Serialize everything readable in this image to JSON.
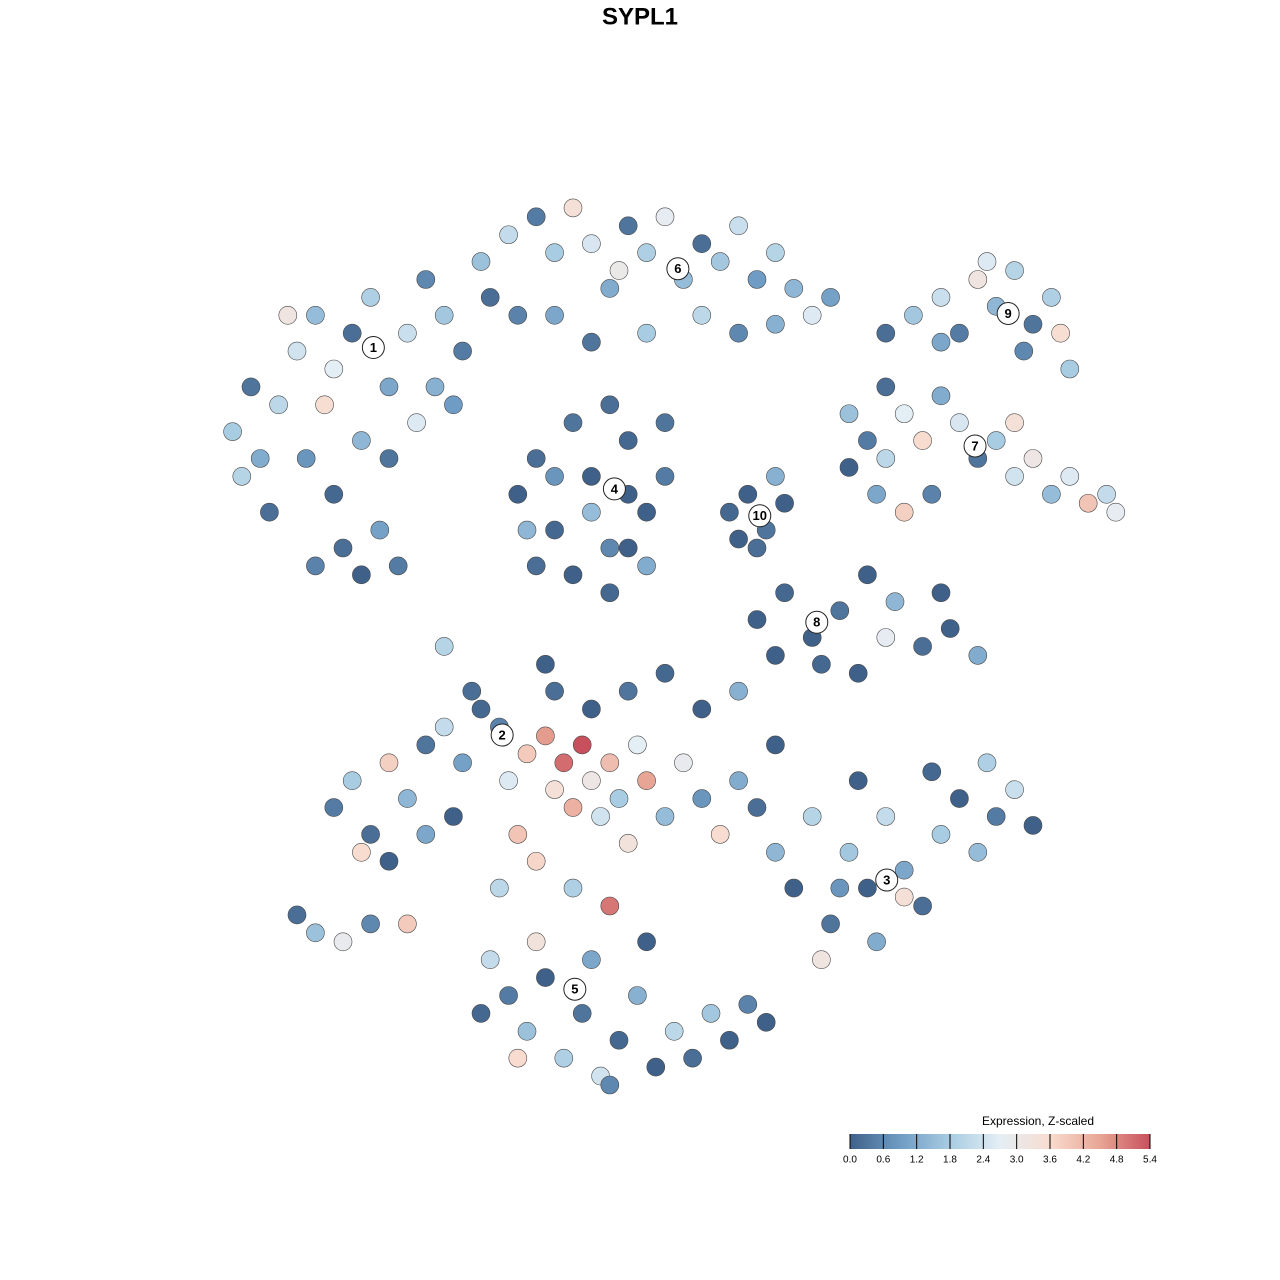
{
  "chart_data": {
    "type": "scatter",
    "title": "SYPL1",
    "x": [
      3,
      5,
      8,
      6,
      10,
      12,
      14,
      16,
      18,
      20,
      22,
      24,
      26,
      28,
      11,
      14,
      17,
      20,
      15,
      12,
      17,
      19,
      23,
      25,
      9,
      7,
      21,
      13,
      4,
      27,
      30,
      33,
      36,
      38,
      40,
      42,
      44,
      46,
      48,
      50,
      52,
      54,
      56,
      58,
      60,
      62,
      64,
      66,
      34,
      38,
      42,
      48,
      54,
      58,
      62,
      45,
      31,
      68,
      34,
      36,
      38,
      40,
      42,
      44,
      46,
      48,
      50,
      36,
      40,
      44,
      48,
      42,
      46,
      38,
      44,
      50,
      35,
      46,
      57,
      59,
      61,
      63,
      60,
      62,
      58,
      60,
      63,
      66,
      69,
      72,
      75,
      78,
      81,
      84,
      71,
      67,
      62,
      74,
      80,
      70,
      72,
      74,
      76,
      78,
      80,
      82,
      84,
      86,
      88,
      90,
      92,
      94,
      96,
      98,
      73,
      76,
      79,
      70,
      74,
      88,
      99,
      74,
      77,
      80,
      82,
      84,
      86,
      88,
      90,
      92,
      93,
      89,
      80,
      85,
      94,
      14,
      16,
      18,
      20,
      22,
      24,
      26,
      28,
      30,
      32,
      17,
      20,
      10,
      12,
      15,
      18,
      22,
      27,
      24,
      29,
      33,
      35,
      37,
      38,
      39,
      40,
      41,
      42,
      43,
      44,
      45,
      46,
      47,
      48,
      50,
      52,
      54,
      56,
      58,
      60,
      36,
      40,
      44,
      34,
      42,
      46,
      50,
      54,
      58,
      62,
      38,
      32,
      62,
      64,
      66,
      68,
      70,
      72,
      74,
      76,
      78,
      80,
      82,
      84,
      86,
      88,
      90,
      73,
      67,
      79,
      71,
      76,
      85,
      69,
      31,
      33,
      35,
      37,
      39,
      41,
      43,
      45,
      47,
      49,
      51,
      53,
      55,
      57,
      59,
      36,
      42,
      48,
      34,
      44,
      30,
      61,
      26,
      37
    ],
    "y": [
      73,
      78,
      76,
      70,
      82,
      86,
      80,
      84,
      88,
      78,
      84,
      90,
      86,
      82,
      70,
      66,
      72,
      70,
      60,
      58,
      57,
      62,
      74,
      78,
      86,
      64,
      58,
      76,
      68,
      76,
      92,
      95,
      97,
      93,
      98,
      94,
      89,
      96,
      93,
      97,
      90,
      94,
      92,
      96,
      90,
      93,
      89,
      86,
      86,
      86,
      83,
      84,
      86,
      84,
      85,
      91,
      88,
      88,
      66,
      70,
      62,
      74,
      68,
      60,
      72,
      64,
      68,
      58,
      57,
      55,
      58,
      64,
      66,
      68,
      76,
      74,
      62,
      60,
      64,
      66,
      62,
      65,
      60,
      68,
      61,
      52,
      55,
      50,
      53,
      57,
      54,
      49,
      51,
      48,
      46,
      47,
      48,
      50,
      55,
      75,
      72,
      70,
      75,
      72,
      77,
      74,
      70,
      72,
      68,
      70,
      66,
      68,
      65,
      66,
      66,
      64,
      66,
      69,
      78,
      74,
      64,
      84,
      86,
      88,
      84,
      90,
      87,
      91,
      85,
      88,
      84,
      82,
      83,
      92,
      80,
      31,
      34,
      28,
      36,
      32,
      38,
      40,
      36,
      42,
      40,
      26,
      25,
      19,
      17,
      16,
      18,
      18,
      30,
      28,
      44,
      34,
      37,
      39,
      33,
      36,
      31,
      38,
      34,
      30,
      36,
      32,
      27,
      38,
      34,
      30,
      36,
      32,
      28,
      34,
      31,
      25,
      22,
      20,
      28,
      42,
      44,
      46,
      42,
      44,
      38,
      44,
      22,
      26,
      22,
      30,
      18,
      26,
      22,
      30,
      24,
      20,
      28,
      32,
      26,
      30,
      33,
      29,
      16,
      14,
      35,
      34,
      21,
      36,
      22,
      14,
      10,
      6,
      12,
      3,
      8,
      1,
      5,
      10,
      2,
      6,
      3,
      8,
      5,
      9,
      16,
      14,
      16,
      3,
      0,
      8,
      7,
      49,
      47
    ],
    "values": [
      1.8,
      0.3,
      2.1,
      1.2,
      2.4,
      1.5,
      2.7,
      0.2,
      1.9,
      1.1,
      2.3,
      0.6,
      1.7,
      0.4,
      0.8,
      0.1,
      1.4,
      0.3,
      0.2,
      0.5,
      0.0,
      1.0,
      2.6,
      1.3,
      3.2,
      0.2,
      0.4,
      3.5,
      2.0,
      0.9,
      1.6,
      2.2,
      0.4,
      1.8,
      3.4,
      2.5,
      1.2,
      0.3,
      1.9,
      2.8,
      1.5,
      0.2,
      1.7,
      2.3,
      0.9,
      2.0,
      1.4,
      2.6,
      0.5,
      1.1,
      0.3,
      1.8,
      2.1,
      0.6,
      1.3,
      3.0,
      0.2,
      1.0,
      0.0,
      0.2,
      0.1,
      0.3,
      0.0,
      0.6,
      0.1,
      0.0,
      0.4,
      0.2,
      0.0,
      0.1,
      1.2,
      1.5,
      0.0,
      0.8,
      0.2,
      0.3,
      1.4,
      0.0,
      0.1,
      0.0,
      0.3,
      0.0,
      0.2,
      1.3,
      0.0,
      0.0,
      0.1,
      0.0,
      0.3,
      0.0,
      1.4,
      0.2,
      0.0,
      1.2,
      0.0,
      0.1,
      0.0,
      2.8,
      0.0,
      1.6,
      0.4,
      2.1,
      2.7,
      3.6,
      1.2,
      2.5,
      0.3,
      1.8,
      2.4,
      3.1,
      1.5,
      2.6,
      4.0,
      2.2,
      1.1,
      3.8,
      0.5,
      0.0,
      0.2,
      3.4,
      2.8,
      0.2,
      1.7,
      2.3,
      0.4,
      3.2,
      1.4,
      2.0,
      0.3,
      1.9,
      3.5,
      0.6,
      1.1,
      2.6,
      1.8,
      0.4,
      1.8,
      0.2,
      3.8,
      1.4,
      0.3,
      2.2,
      1.0,
      0.1,
      0.5,
      3.6,
      0.0,
      0.2,
      1.6,
      2.9,
      0.6,
      3.9,
      0.0,
      1.1,
      0.2,
      2.6,
      3.9,
      4.6,
      3.4,
      5.1,
      4.3,
      5.4,
      3.1,
      2.4,
      4.1,
      1.8,
      3.3,
      2.7,
      4.5,
      1.5,
      2.9,
      0.8,
      3.6,
      1.2,
      0.2,
      3.7,
      1.9,
      5.0,
      4.0,
      0.0,
      0.3,
      0.1,
      0.0,
      1.3,
      0.0,
      0.2,
      2.1,
      1.4,
      0.0,
      2.0,
      0.3,
      1.7,
      0.0,
      2.2,
      1.1,
      0.2,
      1.8,
      0.0,
      1.5,
      0.4,
      2.3,
      0.0,
      1.2,
      3.2,
      0.1,
      0.0,
      3.4,
      1.9,
      0.8,
      2.2,
      0.4,
      1.6,
      0.0,
      1.9,
      0.3,
      2.4,
      0.1,
      1.3,
      0.0,
      2.1,
      0.2,
      1.7,
      0.0,
      0.5,
      3.3,
      1.1,
      0.0,
      3.6,
      0.6,
      0.1,
      0.0,
      2.0,
      0.0
    ],
    "xlim": [
      0,
      100
    ],
    "ylim": [
      0,
      100
    ],
    "cluster_labels": [
      {
        "label": "1",
        "x": 18.3,
        "y": 82.4
      },
      {
        "label": "2",
        "x": 32.3,
        "y": 39.1
      },
      {
        "label": "3",
        "x": 74.1,
        "y": 22.9
      },
      {
        "label": "4",
        "x": 44.5,
        "y": 66.6
      },
      {
        "label": "5",
        "x": 40.2,
        "y": 10.7
      },
      {
        "label": "6",
        "x": 51.4,
        "y": 91.2
      },
      {
        "label": "7",
        "x": 83.7,
        "y": 71.4
      },
      {
        "label": "8",
        "x": 66.5,
        "y": 51.7
      },
      {
        "label": "9",
        "x": 87.3,
        "y": 86.2
      },
      {
        "label": "10",
        "x": 60.3,
        "y": 63.6
      }
    ],
    "colorbar_title": "Expression, Z-scaled",
    "clim": [
      0,
      5.4
    ],
    "cticks": [
      {
        "value": 0,
        "label": "0.0"
      },
      0.6,
      1.2,
      1.8,
      2.4,
      {
        "value": 3,
        "label": "3.0"
      },
      3.6,
      4.2,
      4.8,
      5.4
    ],
    "colormap": [
      "#3f6189",
      "#6f9cc4",
      "#a8cce2",
      "#e4eef5",
      "#f8dccf",
      "#e8a595",
      "#c8505c"
    ]
  }
}
